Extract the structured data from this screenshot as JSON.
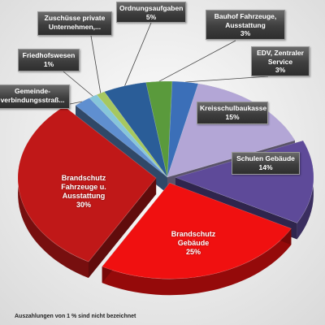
{
  "chart_data": {
    "type": "pie",
    "slices": [
      {
        "label_lines": [
          "EDV, Zentraler",
          "Service"
        ],
        "value_label": "3%",
        "value": 3,
        "color": "#3b6fb8"
      },
      {
        "label_lines": [
          "Kreisschulbaukasse"
        ],
        "value_label": "15%",
        "value": 15,
        "color": "#b3a6d6"
      },
      {
        "label_lines": [
          "Schulen Gebäude"
        ],
        "value_label": "14%",
        "value": 14,
        "color": "#5e4a99"
      },
      {
        "label_lines": [
          "Brandschutz",
          "Gebäude"
        ],
        "value_label": "25%",
        "value": 25,
        "color": "#f01010"
      },
      {
        "label_lines": [
          "Brandschutz",
          "Fahrzeuge u.",
          "Ausstattung"
        ],
        "value_label": "30%",
        "value": 30,
        "color": "#c01818"
      },
      {
        "label_lines": [
          "Gemeinde-",
          "verbindungsstraß..."
        ],
        "value_label": "",
        "value": 2,
        "color": "#5f8fd0"
      },
      {
        "label_lines": [
          "Friedhofswesen"
        ],
        "value_label": "1%",
        "value": 1,
        "color": "#86c6da"
      },
      {
        "label_lines": [
          "Zuschüsse private",
          "Unternehmen,..."
        ],
        "value_label": "",
        "value": 1,
        "color": "#a6c860"
      },
      {
        "label_lines": [
          "Ordnungsaufgaben"
        ],
        "value_label": "5%",
        "value": 5,
        "color": "#2a5d98"
      },
      {
        "label_lines": [
          "Bauhof Fahrzeuge,",
          "Ausstattung"
        ],
        "value_label": "3%",
        "value": 3,
        "color": "#5a9a3c"
      }
    ],
    "footnote": "Auszahlungen von 1 % sind nicht bezeichnet"
  }
}
